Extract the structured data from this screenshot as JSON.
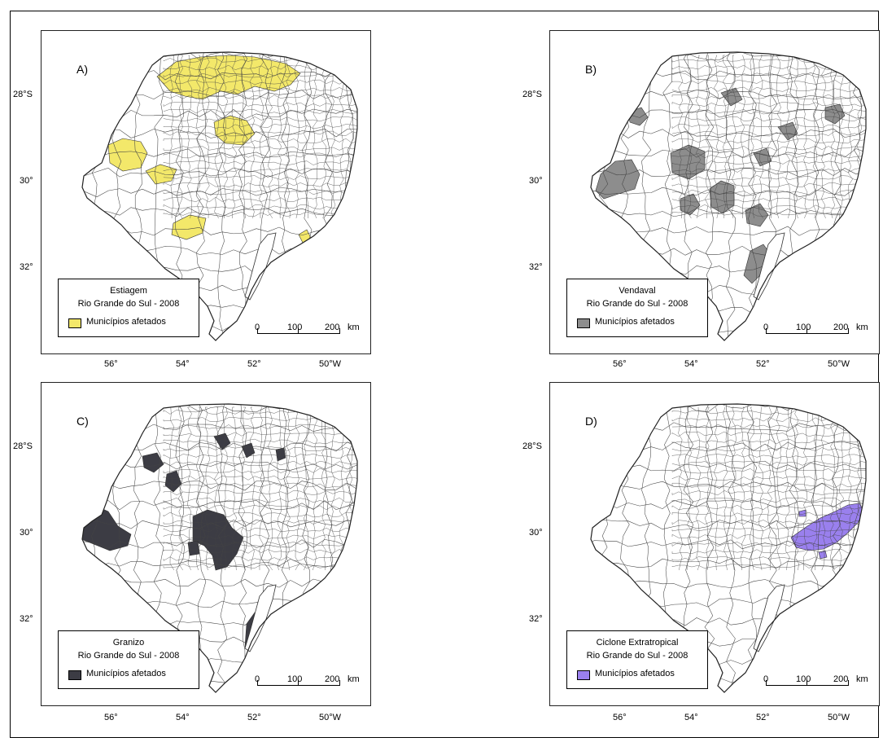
{
  "panels": [
    {
      "letter": "A)",
      "legend_title": "Estiagem",
      "legend_subtitle": "Rio Grande do  Sul - 2008",
      "legend_item": "Municípios afetados",
      "fill_color": "#f3e86a"
    },
    {
      "letter": "B)",
      "legend_title": "Vendaval",
      "legend_subtitle": "Rio Grande do Sul - 2008",
      "legend_item": "Municípios afetados",
      "fill_color": "#8d8d8d"
    },
    {
      "letter": "C)",
      "legend_title": "Granizo",
      "legend_subtitle": "Rio Grande do Sul - 2008",
      "legend_item": "Municípios afetados",
      "fill_color": "#3c3c44"
    },
    {
      "letter": "D)",
      "legend_title": "Ciclone Extratropical",
      "legend_subtitle": "Rio Grande do Sul - 2008",
      "legend_item": "Municípios afetados",
      "fill_color": "#9a80ee"
    }
  ],
  "latitude_labels": [
    "28°S",
    "30°",
    "32°"
  ],
  "longitude_labels": [
    "56°",
    "54°",
    "52°",
    "50°W"
  ],
  "scale": {
    "zero": "0",
    "mid": "100",
    "end": "200",
    "unit": "km"
  }
}
